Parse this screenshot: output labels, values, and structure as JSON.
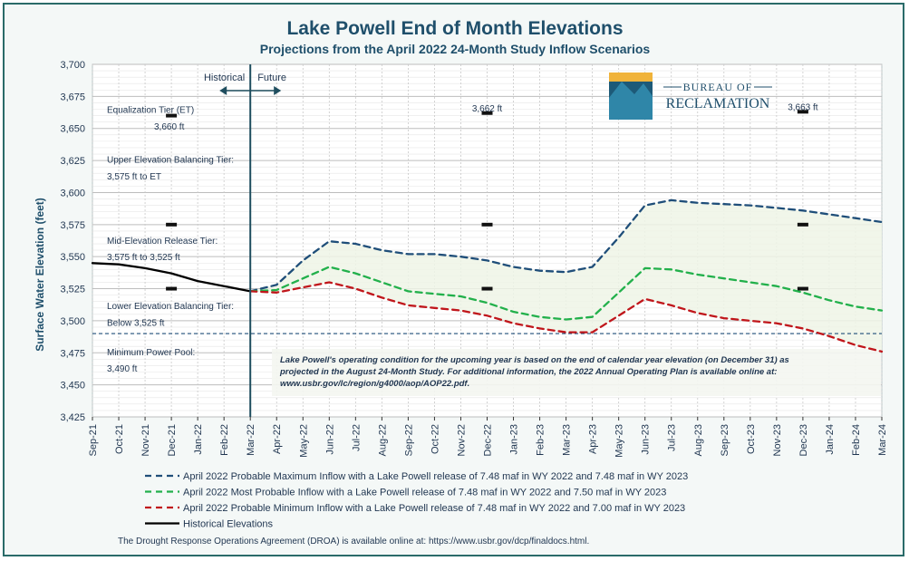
{
  "chart_data": {
    "type": "line",
    "title": "Lake Powell End of Month Elevations",
    "subtitle": "Projections from the April 2022 24-Month Study Inflow Scenarios",
    "ylabel": "Surface Water Elevation (feet)",
    "ylim": [
      3425,
      3700
    ],
    "yticks": [
      "3,425",
      "3,450",
      "3,475",
      "3,500",
      "3,525",
      "3,550",
      "3,575",
      "3,600",
      "3,625",
      "3,650",
      "3,675",
      "3,700"
    ],
    "categories": [
      "Sep-21",
      "Oct-21",
      "Nov-21",
      "Dec-21",
      "Jan-22",
      "Feb-22",
      "Mar-22",
      "Apr-22",
      "May-22",
      "Jun-22",
      "Jul-22",
      "Aug-22",
      "Sep-22",
      "Oct-22",
      "Nov-22",
      "Dec-22",
      "Jan-23",
      "Feb-23",
      "Mar-23",
      "Apr-23",
      "May-23",
      "Jun-23",
      "Jul-23",
      "Aug-23",
      "Sep-23",
      "Oct-23",
      "Nov-23",
      "Dec-23",
      "Jan-24",
      "Feb-24",
      "Mar-24"
    ],
    "grid": true,
    "series": [
      {
        "name": "Historical Elevations",
        "color": "#000000",
        "dash": "solid",
        "values": [
          3545,
          3544,
          3541,
          3537,
          3531,
          3527,
          3523,
          null,
          null,
          null,
          null,
          null,
          null,
          null,
          null,
          null,
          null,
          null,
          null,
          null,
          null,
          null,
          null,
          null,
          null,
          null,
          null,
          null,
          null,
          null,
          null
        ]
      },
      {
        "name": "April 2022 Probable Maximum Inflow with a Lake Powell release of 7.48 maf in WY 2022 and 7.48 maf in WY 2023",
        "color": "#1f4e79",
        "dash": "dashed",
        "values": [
          null,
          null,
          null,
          null,
          null,
          null,
          3523,
          3528,
          3547,
          3562,
          3560,
          3555,
          3552,
          3552,
          3550,
          3547,
          3542,
          3539,
          3538,
          3542,
          3565,
          3590,
          3594,
          3592,
          3591,
          3590,
          3588,
          3586,
          3583,
          3580,
          3577
        ]
      },
      {
        "name": "April 2022 Most Probable Inflow with a Lake Powell release of 7.48 maf in WY 2022 and 7.50 maf in WY 2023",
        "color": "#22b04b",
        "dash": "dashed",
        "values": [
          null,
          null,
          null,
          null,
          null,
          null,
          3523,
          3524,
          3533,
          3542,
          3537,
          3530,
          3523,
          3521,
          3519,
          3514,
          3507,
          3503,
          3501,
          3503,
          3522,
          3541,
          3540,
          3536,
          3533,
          3530,
          3527,
          3522,
          3516,
          3511,
          3508
        ]
      },
      {
        "name": "April 2022 Probable Minimum Inflow with a Lake Powell release of 7.48 maf in WY 2022 and 7.00 maf in WY 2023",
        "color": "#c0161b",
        "dash": "dashed",
        "values": [
          null,
          null,
          null,
          null,
          null,
          null,
          3523,
          3522,
          3526,
          3530,
          3525,
          3518,
          3512,
          3510,
          3508,
          3504,
          3498,
          3494,
          3491,
          3491,
          3504,
          3517,
          3512,
          3506,
          3502,
          3500,
          3498,
          3494,
          3488,
          3481,
          3476
        ]
      }
    ],
    "markers": {
      "months": [
        "Dec-21",
        "Dec-22",
        "Dec-23"
      ],
      "levels": [
        3660,
        3575,
        3525
      ],
      "dec22_top": 3662,
      "dec23_top": 3663
    },
    "min_power_pool": 3490,
    "tier_labels": [
      {
        "line1": "Equalization Tier (ET)",
        "line2": "3,660 ft",
        "y1": 3665,
        "y2": 3652
      },
      {
        "line1": "Upper Elevation Balancing Tier:",
        "line2": "3,575 ft to ET",
        "y1": 3626,
        "y2": 3613
      },
      {
        "line1": "Mid-Elevation Release Tier:",
        "line2": "3,575 ft to 3,525 ft",
        "y1": 3563,
        "y2": 3550
      },
      {
        "line1": "Lower Elevation Balancing Tier:",
        "line2": "Below 3,525 ft",
        "y1": 3512,
        "y2": 3499
      },
      {
        "line1": "Minimum Power Pool:",
        "line2": "3,490 ft",
        "y1": 3476,
        "y2": 3463
      }
    ],
    "point_labels": [
      {
        "text": "3,662 ft",
        "month": "Dec-22",
        "y": 3666
      },
      {
        "text": "3,663 ft",
        "month": "Dec-23",
        "y": 3667
      }
    ],
    "divider": {
      "month": "Mar-22",
      "left_label": "Historical",
      "right_label": "Future"
    },
    "note_lines": [
      "Lake Powell's operating condition for the upcoming year is based on the end of calendar year elevation (on December 31) as",
      "projected in the August 24-Month Study. For additional information, the 2022 Annual Operating Plan is available online at:",
      "www.usbr.gov/lc/region/g4000/aop/AOP22.pdf."
    ],
    "footer": "The Drought Response Operations Agreement (DROA) is available online at: https://www.usbr.gov/dcp/finaldocs.html.",
    "logo": {
      "line1": "BUREAU OF",
      "line2": "RECLAMATION"
    },
    "legend_position": "bottom"
  }
}
